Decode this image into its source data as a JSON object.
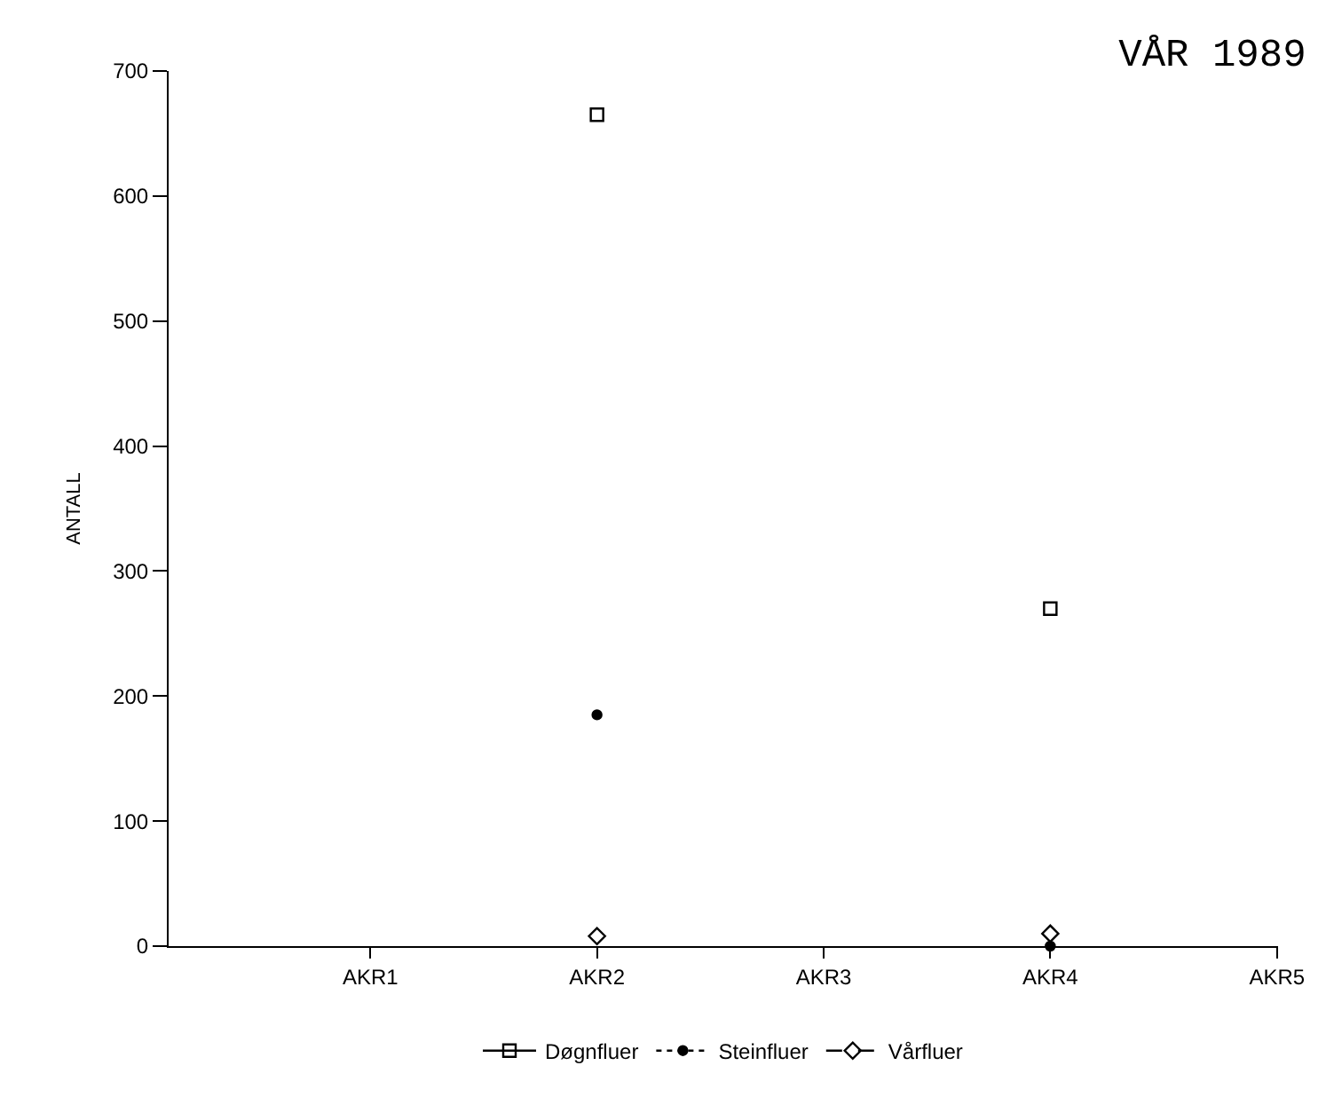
{
  "chart_data": {
    "type": "scatter",
    "title": "VÅR 1989",
    "ylabel": "ANTALL",
    "categories": [
      "AKR1",
      "AKR2",
      "AKR3",
      "AKR4",
      "AKR5"
    ],
    "series": [
      {
        "name": "Døgnfluer",
        "color": "#000000",
        "values": [
          null,
          665,
          null,
          270,
          null
        ],
        "marker": "square",
        "line_style": "solid"
      },
      {
        "name": "Steinfluer",
        "color": "#000000",
        "values": [
          null,
          185,
          null,
          0,
          null
        ],
        "marker": "circle",
        "line_style": "dotted"
      },
      {
        "name": "Vårfluer",
        "color": "#000000",
        "values": [
          null,
          8,
          null,
          10,
          null
        ],
        "marker": "diamond",
        "line_style": "dashed"
      }
    ],
    "ylim": [
      0,
      700
    ],
    "yticks": [
      0,
      100,
      200,
      300,
      400,
      500,
      600,
      700
    ],
    "grid": false,
    "legend": "bottom"
  }
}
